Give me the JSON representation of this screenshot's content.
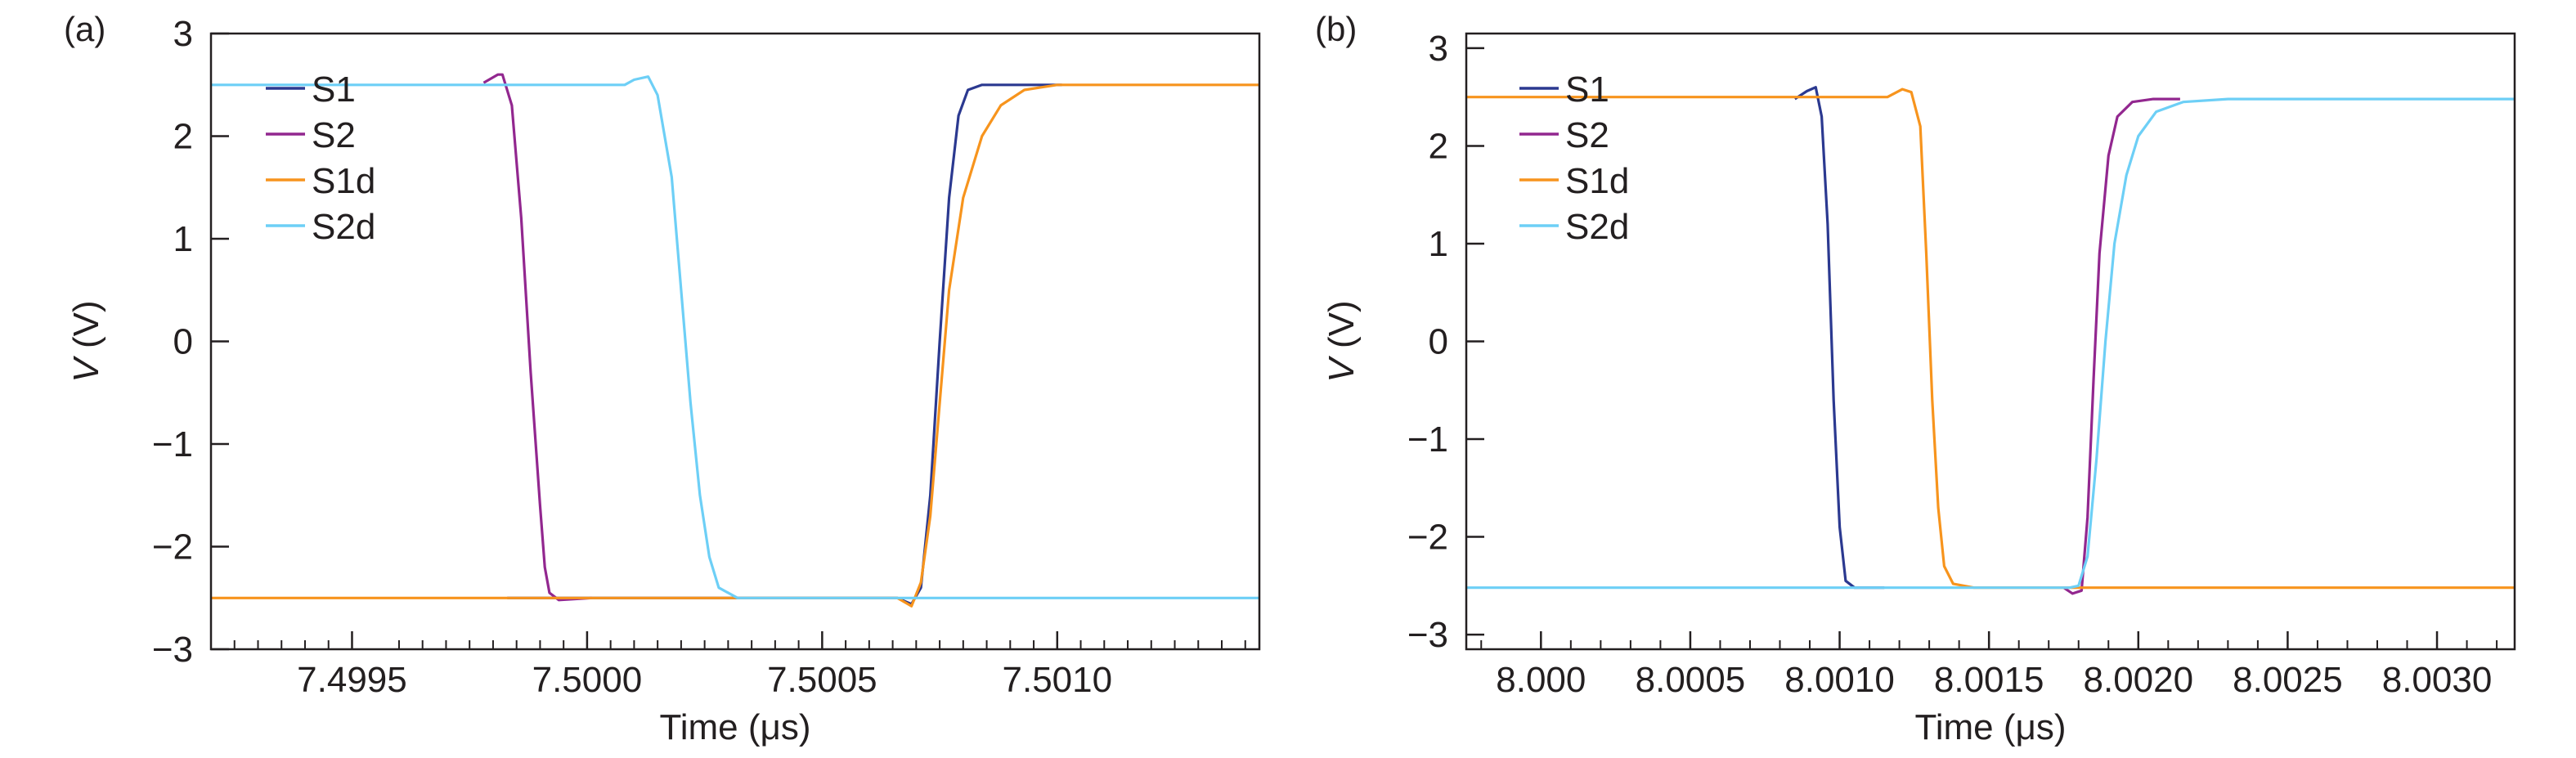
{
  "chart_data": [
    {
      "panel_label": "(a)",
      "type": "line",
      "xlabel": "Time (μs)",
      "ylabel_var": "V",
      "ylabel_unit": " (V)",
      "xlim": [
        7.4992,
        7.50143
      ],
      "ylim": [
        -3,
        3
      ],
      "xticks": [
        7.4995,
        7.5,
        7.5005,
        7.501
      ],
      "xtick_labels": [
        "7.4995",
        "7.5000",
        "7.5005",
        "7.5010"
      ],
      "xminor": [
        7.49925,
        7.4993,
        7.49935,
        7.4994,
        7.49945,
        7.4996,
        7.49965,
        7.4997,
        7.49975,
        7.4998,
        7.49985,
        7.4999,
        7.49995,
        7.50005,
        7.5001,
        7.50015,
        7.5002,
        7.50025,
        7.5003,
        7.50035,
        7.5004,
        7.50045,
        7.50055,
        7.5006,
        7.50065,
        7.5007,
        7.50075,
        7.5008,
        7.50085,
        7.5009,
        7.50095,
        7.50105,
        7.5011,
        7.50115,
        7.5012,
        7.50125,
        7.5013,
        7.50135,
        7.5014
      ],
      "yticks": [
        -3,
        -2,
        -1,
        0,
        1,
        2,
        3
      ],
      "ytick_labels": [
        "−3",
        "−2",
        "−1",
        "0",
        "1",
        "2",
        "3"
      ],
      "legend_position": "top-left",
      "series": [
        {
          "name": "S1",
          "color": "#2b3990",
          "x": [
            7.49983,
            7.50066,
            7.50069,
            7.50071,
            7.50073,
            7.50075,
            7.50077,
            7.50079,
            7.50081,
            7.50084,
            7.50087,
            7.5009,
            7.50101
          ],
          "y": [
            -2.5,
            -2.5,
            -2.56,
            -2.4,
            -1.5,
            0.0,
            1.4,
            2.2,
            2.45,
            2.5,
            2.5,
            2.5,
            2.5
          ]
        },
        {
          "name": "S2",
          "color": "#92278f",
          "x": [
            7.49978,
            7.49981,
            7.49982,
            7.49984,
            7.49986,
            7.49988,
            7.4999,
            7.49991,
            7.49992,
            7.49994,
            7.50001
          ],
          "y": [
            2.52,
            2.6,
            2.6,
            2.3,
            1.2,
            -0.3,
            -1.6,
            -2.2,
            -2.45,
            -2.52,
            -2.5
          ]
        },
        {
          "name": "S1d",
          "color": "#f7941d",
          "x": [
            7.4992,
            7.50066,
            7.50069,
            7.50071,
            7.50073,
            7.50075,
            7.50077,
            7.5008,
            7.50084,
            7.50088,
            7.50093,
            7.501,
            7.50143
          ],
          "y": [
            -2.5,
            -2.5,
            -2.58,
            -2.35,
            -1.7,
            -0.6,
            0.5,
            1.4,
            2.0,
            2.3,
            2.45,
            2.5,
            2.5
          ]
        },
        {
          "name": "S2d",
          "color": "#6dcff6",
          "x": [
            7.4992,
            7.50008,
            7.5001,
            7.50013,
            7.50015,
            7.50018,
            7.5002,
            7.50022,
            7.50024,
            7.50026,
            7.50028,
            7.50032,
            7.50038,
            7.50143
          ],
          "y": [
            2.5,
            2.5,
            2.55,
            2.58,
            2.4,
            1.6,
            0.5,
            -0.6,
            -1.5,
            -2.1,
            -2.4,
            -2.5,
            -2.5,
            -2.5
          ]
        }
      ]
    },
    {
      "panel_label": "(b)",
      "type": "line",
      "xlabel": "Time (μs)",
      "ylabel_var": "V",
      "ylabel_unit": " (V)",
      "xlim": [
        7.99975,
        8.00326
      ],
      "ylim": [
        -3.15,
        3.15
      ],
      "xticks": [
        8.0,
        8.0005,
        8.001,
        8.0015,
        8.002,
        8.0025,
        8.003
      ],
      "xtick_labels": [
        "8.000",
        "8.0005",
        "8.0010",
        "8.0015",
        "8.0020",
        "8.0025",
        "8.0030"
      ],
      "xminor": [
        7.9998,
        8.0001,
        8.0002,
        8.0003,
        8.0004,
        8.0006,
        8.0007,
        8.0008,
        8.0009,
        8.0011,
        8.0012,
        8.0013,
        8.0014,
        8.0016,
        8.0017,
        8.0018,
        8.0019,
        8.0021,
        8.0022,
        8.0023,
        8.0024,
        8.0026,
        8.0027,
        8.0028,
        8.0029,
        8.0031,
        8.0032
      ],
      "yticks": [
        -3,
        -2,
        -1,
        0,
        1,
        2,
        3
      ],
      "ytick_labels": [
        "−3",
        "−2",
        "−1",
        "0",
        "1",
        "2",
        "3"
      ],
      "legend_position": "top-left",
      "series": [
        {
          "name": "S1",
          "color": "#2b3990",
          "x": [
            8.00085,
            8.00089,
            8.00092,
            8.00094,
            8.00096,
            8.00098,
            8.001,
            8.00102,
            8.00105,
            8.00115
          ],
          "y": [
            2.48,
            2.56,
            2.6,
            2.3,
            1.2,
            -0.6,
            -1.9,
            -2.45,
            -2.52,
            -2.52
          ]
        },
        {
          "name": "S2",
          "color": "#92278f",
          "x": [
            8.00175,
            8.00178,
            8.00181,
            8.00183,
            8.00185,
            8.00187,
            8.0019,
            8.00193,
            8.00198,
            8.00205,
            8.00214
          ],
          "y": [
            -2.52,
            -2.58,
            -2.55,
            -1.8,
            -0.4,
            0.9,
            1.9,
            2.3,
            2.45,
            2.48,
            2.48
          ]
        },
        {
          "name": "S1d",
          "color": "#f7941d",
          "x": [
            7.99975,
            8.00116,
            8.00121,
            8.00124,
            8.00127,
            8.00129,
            8.00131,
            8.00133,
            8.00135,
            8.00138,
            8.00145,
            8.00326
          ],
          "y": [
            2.5,
            2.5,
            2.58,
            2.55,
            2.2,
            0.9,
            -0.6,
            -1.7,
            -2.3,
            -2.48,
            -2.52,
            -2.52
          ]
        },
        {
          "name": "S2d",
          "color": "#6dcff6",
          "x": [
            7.99975,
            8.00177,
            8.0018,
            8.00183,
            8.00186,
            8.00189,
            8.00192,
            8.00196,
            8.002,
            8.00206,
            8.00215,
            8.0023,
            8.00326
          ],
          "y": [
            -2.52,
            -2.52,
            -2.5,
            -2.2,
            -1.2,
            0.0,
            1.0,
            1.7,
            2.1,
            2.35,
            2.45,
            2.48,
            2.48
          ]
        }
      ]
    }
  ]
}
